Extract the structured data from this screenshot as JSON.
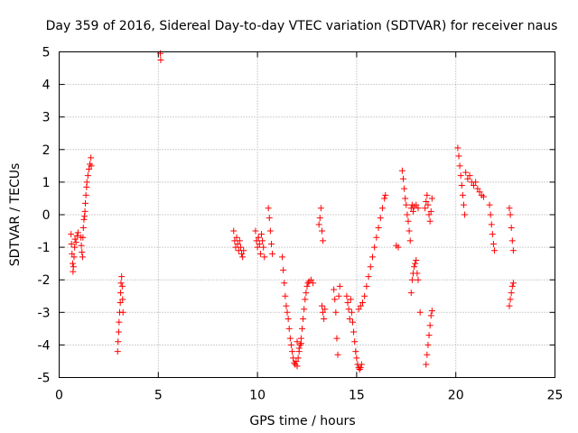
{
  "chart_data": {
    "type": "scatter",
    "title": "Day 359 of 2016, Sidereal Day-to-day VTEC variation (SDTVAR) for receiver naus",
    "xlabel": "GPS time / hours",
    "ylabel": "SDTVAR / TECUs",
    "xlim": [
      0,
      25
    ],
    "ylim": [
      -5,
      5
    ],
    "xticks": [
      "0",
      "5",
      "10",
      "15",
      "20",
      "25"
    ],
    "yticks": [
      "-5",
      "-4",
      "-3",
      "-2",
      "-1",
      "0",
      "1",
      "2",
      "3",
      "4",
      "5"
    ],
    "grid": true,
    "marker": "+",
    "series": [
      {
        "name": "SDTVAR",
        "color": "#ff0000",
        "points": [
          [
            0.6,
            -0.6
          ],
          [
            0.62,
            -0.9
          ],
          [
            0.65,
            -1.2
          ],
          [
            0.68,
            -1.5
          ],
          [
            0.7,
            -1.75
          ],
          [
            0.72,
            -1.6
          ],
          [
            0.75,
            -1.3
          ],
          [
            0.78,
            -1.0
          ],
          [
            0.8,
            -0.75
          ],
          [
            0.85,
            -0.85
          ],
          [
            0.9,
            -0.65
          ],
          [
            0.95,
            -0.55
          ],
          [
            1.1,
            -0.7
          ],
          [
            1.12,
            -0.95
          ],
          [
            1.15,
            -1.15
          ],
          [
            1.18,
            -1.3
          ],
          [
            1.2,
            -0.7
          ],
          [
            1.22,
            -0.4
          ],
          [
            1.25,
            -0.15
          ],
          [
            1.28,
            -0.05
          ],
          [
            1.3,
            0.1
          ],
          [
            1.32,
            0.35
          ],
          [
            1.35,
            0.6
          ],
          [
            1.38,
            0.85
          ],
          [
            1.4,
            1.0
          ],
          [
            1.45,
            1.2
          ],
          [
            1.5,
            1.4
          ],
          [
            1.55,
            1.55
          ],
          [
            1.6,
            1.75
          ],
          [
            1.62,
            1.5
          ],
          [
            2.95,
            -4.2
          ],
          [
            2.97,
            -3.9
          ],
          [
            3.0,
            -3.6
          ],
          [
            3.02,
            -3.3
          ],
          [
            3.05,
            -3.0
          ],
          [
            3.08,
            -2.7
          ],
          [
            3.1,
            -2.4
          ],
          [
            3.12,
            -2.1
          ],
          [
            3.15,
            -1.9
          ],
          [
            3.18,
            -2.2
          ],
          [
            3.2,
            -2.6
          ],
          [
            3.22,
            -3.0
          ],
          [
            5.1,
            4.95
          ],
          [
            5.12,
            4.75
          ],
          [
            8.8,
            -0.5
          ],
          [
            8.85,
            -0.8
          ],
          [
            8.9,
            -1.0
          ],
          [
            8.95,
            -0.7
          ],
          [
            9.0,
            -0.9
          ],
          [
            9.05,
            -1.1
          ],
          [
            9.1,
            -0.8
          ],
          [
            9.15,
            -1.0
          ],
          [
            9.2,
            -1.2
          ],
          [
            9.25,
            -1.3
          ],
          [
            9.3,
            -1.1
          ],
          [
            9.9,
            -0.5
          ],
          [
            9.95,
            -0.8
          ],
          [
            10.0,
            -1.0
          ],
          [
            10.05,
            -0.7
          ],
          [
            10.1,
            -0.9
          ],
          [
            10.15,
            -1.2
          ],
          [
            10.2,
            -0.6
          ],
          [
            10.25,
            -0.8
          ],
          [
            10.3,
            -1.0
          ],
          [
            10.35,
            -1.3
          ],
          [
            10.55,
            0.2
          ],
          [
            10.6,
            -0.1
          ],
          [
            10.65,
            -0.5
          ],
          [
            10.7,
            -0.9
          ],
          [
            10.75,
            -1.2
          ],
          [
            11.25,
            -1.3
          ],
          [
            11.3,
            -1.7
          ],
          [
            11.35,
            -2.1
          ],
          [
            11.4,
            -2.5
          ],
          [
            11.45,
            -2.8
          ],
          [
            11.5,
            -3.0
          ],
          [
            11.55,
            -3.2
          ],
          [
            11.6,
            -3.5
          ],
          [
            11.65,
            -3.8
          ],
          [
            11.7,
            -4.0
          ],
          [
            11.75,
            -4.2
          ],
          [
            11.8,
            -4.4
          ],
          [
            11.85,
            -4.55
          ],
          [
            11.9,
            -4.6
          ],
          [
            11.95,
            -4.5
          ],
          [
            12.0,
            -4.65
          ],
          [
            12.05,
            -4.4
          ],
          [
            12.1,
            -4.2
          ],
          [
            12.15,
            -4.0
          ],
          [
            12.2,
            -3.8
          ],
          [
            12.25,
            -3.5
          ],
          [
            12.3,
            -3.2
          ],
          [
            12.35,
            -2.9
          ],
          [
            12.4,
            -2.6
          ],
          [
            12.45,
            -2.4
          ],
          [
            12.5,
            -2.2
          ],
          [
            12.55,
            -2.1
          ],
          [
            12.6,
            -2.05
          ],
          [
            12.7,
            -2.0
          ],
          [
            12.8,
            -2.1
          ],
          [
            12.0,
            -3.9
          ],
          [
            12.1,
            -4.1
          ],
          [
            12.2,
            -3.95
          ],
          [
            13.1,
            -0.3
          ],
          [
            13.15,
            -0.1
          ],
          [
            13.2,
            0.2
          ],
          [
            13.25,
            -0.5
          ],
          [
            13.3,
            -0.8
          ],
          [
            13.25,
            -2.8
          ],
          [
            13.3,
            -3.0
          ],
          [
            13.35,
            -3.2
          ],
          [
            13.4,
            -2.9
          ],
          [
            13.85,
            -2.3
          ],
          [
            13.9,
            -2.6
          ],
          [
            13.95,
            -3.0
          ],
          [
            14.0,
            -3.8
          ],
          [
            14.05,
            -4.3
          ],
          [
            14.1,
            -2.5
          ],
          [
            14.15,
            -2.2
          ],
          [
            14.5,
            -2.5
          ],
          [
            14.55,
            -2.7
          ],
          [
            14.6,
            -2.9
          ],
          [
            14.65,
            -3.2
          ],
          [
            14.7,
            -2.6
          ],
          [
            14.75,
            -3.0
          ],
          [
            14.8,
            -3.3
          ],
          [
            14.85,
            -3.6
          ],
          [
            14.9,
            -3.9
          ],
          [
            14.95,
            -4.2
          ],
          [
            15.0,
            -4.4
          ],
          [
            15.05,
            -4.6
          ],
          [
            15.1,
            -4.7
          ],
          [
            15.15,
            -4.75
          ],
          [
            15.2,
            -4.7
          ],
          [
            15.25,
            -4.6
          ],
          [
            15.1,
            -2.9
          ],
          [
            15.2,
            -2.8
          ],
          [
            15.3,
            -2.7
          ],
          [
            15.4,
            -2.5
          ],
          [
            15.5,
            -2.2
          ],
          [
            15.6,
            -1.9
          ],
          [
            15.7,
            -1.6
          ],
          [
            15.8,
            -1.3
          ],
          [
            15.9,
            -1.0
          ],
          [
            16.0,
            -0.7
          ],
          [
            16.1,
            -0.4
          ],
          [
            16.2,
            -0.1
          ],
          [
            16.3,
            0.2
          ],
          [
            16.4,
            0.5
          ],
          [
            16.45,
            0.6
          ],
          [
            17.0,
            -0.95
          ],
          [
            17.1,
            -1.0
          ],
          [
            17.3,
            1.35
          ],
          [
            17.35,
            1.1
          ],
          [
            17.4,
            0.8
          ],
          [
            17.45,
            0.5
          ],
          [
            17.5,
            0.3
          ],
          [
            17.55,
            0.0
          ],
          [
            17.6,
            -0.2
          ],
          [
            17.65,
            -0.5
          ],
          [
            17.7,
            -0.8
          ],
          [
            17.75,
            0.2
          ],
          [
            17.8,
            0.3
          ],
          [
            17.85,
            0.1
          ],
          [
            17.9,
            0.25
          ],
          [
            18.0,
            0.3
          ],
          [
            18.1,
            0.2
          ],
          [
            17.75,
            -2.4
          ],
          [
            17.8,
            -2.0
          ],
          [
            17.85,
            -1.8
          ],
          [
            17.9,
            -1.6
          ],
          [
            17.95,
            -1.5
          ],
          [
            18.0,
            -1.4
          ],
          [
            18.05,
            -1.8
          ],
          [
            18.1,
            -2.0
          ],
          [
            18.2,
            -3.0
          ],
          [
            18.5,
            -4.6
          ],
          [
            18.55,
            -4.3
          ],
          [
            18.6,
            -4.0
          ],
          [
            18.65,
            -3.7
          ],
          [
            18.7,
            -3.4
          ],
          [
            18.75,
            -3.1
          ],
          [
            18.8,
            -2.95
          ],
          [
            18.45,
            0.2
          ],
          [
            18.5,
            0.4
          ],
          [
            18.55,
            0.6
          ],
          [
            18.6,
            0.3
          ],
          [
            18.65,
            0.0
          ],
          [
            18.7,
            -0.2
          ],
          [
            18.75,
            0.1
          ],
          [
            18.8,
            0.5
          ],
          [
            20.1,
            2.05
          ],
          [
            20.15,
            1.8
          ],
          [
            20.2,
            1.5
          ],
          [
            20.25,
            1.2
          ],
          [
            20.3,
            0.9
          ],
          [
            20.35,
            0.6
          ],
          [
            20.4,
            0.3
          ],
          [
            20.45,
            0.0
          ],
          [
            20.5,
            1.3
          ],
          [
            20.6,
            1.1
          ],
          [
            20.7,
            1.2
          ],
          [
            20.8,
            1.0
          ],
          [
            20.9,
            0.9
          ],
          [
            21.0,
            1.0
          ],
          [
            21.1,
            0.8
          ],
          [
            21.2,
            0.7
          ],
          [
            21.3,
            0.6
          ],
          [
            21.4,
            0.55
          ],
          [
            21.7,
            0.3
          ],
          [
            21.75,
            0.0
          ],
          [
            21.8,
            -0.3
          ],
          [
            21.85,
            -0.6
          ],
          [
            21.9,
            -0.9
          ],
          [
            21.95,
            -1.1
          ],
          [
            22.7,
            0.2
          ],
          [
            22.75,
            0.0
          ],
          [
            22.8,
            -0.4
          ],
          [
            22.85,
            -0.8
          ],
          [
            22.9,
            -1.1
          ],
          [
            22.7,
            -2.8
          ],
          [
            22.75,
            -2.6
          ],
          [
            22.8,
            -2.4
          ],
          [
            22.85,
            -2.2
          ],
          [
            22.9,
            -2.1
          ]
        ]
      }
    ]
  }
}
